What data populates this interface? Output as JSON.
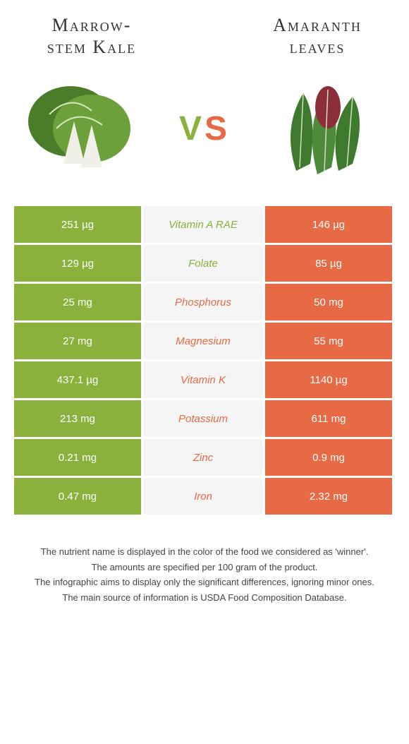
{
  "colors": {
    "green": "#8ab13b",
    "orange": "#e76a44",
    "mid_bg": "#f5f5f5",
    "text": "#333333"
  },
  "header": {
    "left_title_line1": "Marrow-",
    "left_title_line2": "stem Kale",
    "right_title_line1": "Amaranth",
    "right_title_line2": "leaves",
    "vs_v": "V",
    "vs_s": "S"
  },
  "comparison": {
    "rows": [
      {
        "nutrient": "Vitamin A RAE",
        "left": "251 µg",
        "right": "146 µg",
        "winner": "left"
      },
      {
        "nutrient": "Folate",
        "left": "129 µg",
        "right": "85 µg",
        "winner": "left"
      },
      {
        "nutrient": "Phosphorus",
        "left": "25 mg",
        "right": "50 mg",
        "winner": "right"
      },
      {
        "nutrient": "Magnesium",
        "left": "27 mg",
        "right": "55 mg",
        "winner": "right"
      },
      {
        "nutrient": "Vitamin K",
        "left": "437.1 µg",
        "right": "1140 µg",
        "winner": "right"
      },
      {
        "nutrient": "Potassium",
        "left": "213 mg",
        "right": "611 mg",
        "winner": "right"
      },
      {
        "nutrient": "Zinc",
        "left": "0.21 mg",
        "right": "0.9 mg",
        "winner": "right"
      },
      {
        "nutrient": "Iron",
        "left": "0.47 mg",
        "right": "2.32 mg",
        "winner": "right"
      }
    ]
  },
  "footer": {
    "line1": "The nutrient name is displayed in the color of the food we considered as 'winner'.",
    "line2": "The amounts are specified per 100 gram of the product.",
    "line3": "The infographic aims to display only the significant differences, ignoring minor ones.",
    "line4": "The main source of information is USDA Food Composition Database."
  }
}
